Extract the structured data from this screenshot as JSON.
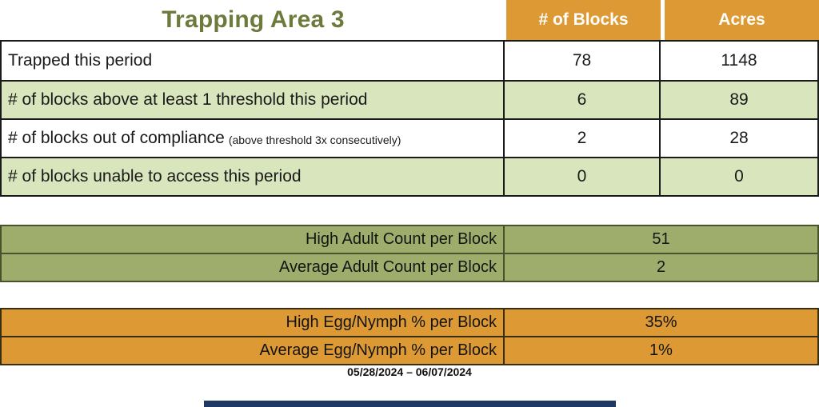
{
  "colors": {
    "orange": "#DD9933",
    "light_green": "#D9E5BC",
    "olive_green": "#9FAD6C",
    "title_green": "#6C7B3C",
    "navy_bar": "#1F3864"
  },
  "main_table": {
    "title": "Trapping Area 3",
    "columns": {
      "blocks": "# of Blocks",
      "acres": "Acres"
    },
    "rows": [
      {
        "label": "Trapped this period",
        "note": "",
        "blocks": "78",
        "acres": "1148"
      },
      {
        "label": "# of blocks above at least 1 threshold this period",
        "note": "",
        "blocks": "6",
        "acres": "89"
      },
      {
        "label": "# of blocks out of compliance",
        "note": "(above threshold 3x consecutively)",
        "blocks": "2",
        "acres": "28"
      },
      {
        "label": "# of blocks unable to access this period",
        "note": "",
        "blocks": "0",
        "acres": "0"
      }
    ]
  },
  "adult_table": {
    "rows": [
      {
        "label": "High Adult Count per Block",
        "value": "51"
      },
      {
        "label": "Average Adult Count per Block",
        "value": "2"
      }
    ]
  },
  "egg_table": {
    "rows": [
      {
        "label": "High Egg/Nymph % per Block",
        "value": "35%"
      },
      {
        "label": "Average Egg/Nymph % per Block",
        "value": "1%"
      }
    ]
  },
  "footer": {
    "date_range": "05/28/2024 – 06/07/2024"
  }
}
